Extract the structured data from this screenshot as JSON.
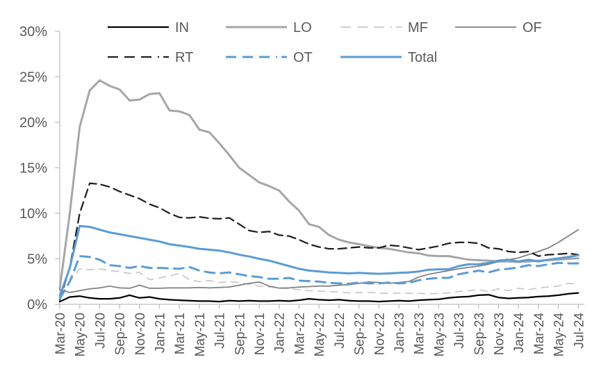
{
  "chart_data": {
    "type": "line",
    "title": "",
    "xlabel": "",
    "ylabel": "",
    "grid": false,
    "legend_position": "top",
    "legend_rows": [
      [
        "IN",
        "LO",
        "MF",
        "OF"
      ],
      [
        "RT",
        "OT",
        "Total"
      ]
    ],
    "ylim": [
      0,
      30
    ],
    "y_tick_labels": [
      "0%",
      "5%",
      "10%",
      "15%",
      "20%",
      "25%",
      "30%"
    ],
    "y_tick_values": [
      0,
      5,
      10,
      15,
      20,
      25,
      30
    ],
    "x_tick_labels": [
      "Mar-20",
      "May-20",
      "Jul-20",
      "Sep-20",
      "Nov-20",
      "Jan-21",
      "Mar-21",
      "May-21",
      "Jul-21",
      "Sep-21",
      "Nov-21",
      "Jan-22",
      "Mar-22",
      "May-22",
      "Jul-22",
      "Sep-22",
      "Nov-22",
      "Jan-23",
      "Mar-23",
      "May-23",
      "Jul-23",
      "Sep-23",
      "Nov-23",
      "Jan-24",
      "Mar-24",
      "May-24",
      "Jul-24"
    ],
    "x": [
      "Mar-20",
      "Apr-20",
      "May-20",
      "Jun-20",
      "Jul-20",
      "Aug-20",
      "Sep-20",
      "Oct-20",
      "Nov-20",
      "Dec-20",
      "Jan-21",
      "Feb-21",
      "Mar-21",
      "Apr-21",
      "May-21",
      "Jun-21",
      "Jul-21",
      "Aug-21",
      "Sep-21",
      "Oct-21",
      "Nov-21",
      "Dec-21",
      "Jan-22",
      "Feb-22",
      "Mar-22",
      "Apr-22",
      "May-22",
      "Jun-22",
      "Jul-22",
      "Aug-22",
      "Sep-22",
      "Oct-22",
      "Nov-22",
      "Dec-22",
      "Jan-23",
      "Feb-23",
      "Mar-23",
      "Apr-23",
      "May-23",
      "Jun-23",
      "Jul-23",
      "Aug-23",
      "Sep-23",
      "Oct-23",
      "Nov-23",
      "Dec-23",
      "Jan-24",
      "Feb-24",
      "Mar-24",
      "Apr-24",
      "May-24",
      "Jun-24",
      "Jul-24"
    ],
    "colors": {
      "black": "#000000",
      "dark_dash": "#1f1f1f",
      "gray_light_thick": "#a6a6a6",
      "gray_lighter_dash": "#c9c9c9",
      "gray_medium": "#7f7f7f",
      "blue": "#5b9bd5",
      "axis": "#bfbfbf",
      "label_text": "#595959"
    },
    "series": [
      {
        "name": "IN",
        "color": "#000000",
        "style": "solid",
        "width": 2.25,
        "values": [
          0.3,
          0.8,
          0.9,
          0.7,
          0.6,
          0.6,
          0.7,
          1.0,
          0.7,
          0.8,
          0.6,
          0.5,
          0.45,
          0.4,
          0.35,
          0.35,
          0.3,
          0.4,
          0.35,
          0.4,
          0.35,
          0.35,
          0.4,
          0.35,
          0.45,
          0.6,
          0.5,
          0.45,
          0.5,
          0.4,
          0.35,
          0.35,
          0.3,
          0.35,
          0.4,
          0.35,
          0.45,
          0.5,
          0.55,
          0.7,
          0.8,
          0.85,
          1.0,
          1.05,
          0.75,
          0.65,
          0.7,
          0.75,
          0.85,
          0.9,
          1.0,
          1.15,
          1.25
        ]
      },
      {
        "name": "LO",
        "color": "#a6a6a6",
        "style": "solid",
        "width": 3,
        "values": [
          1.7,
          10.0,
          19.5,
          23.5,
          24.6,
          24.0,
          23.6,
          22.4,
          22.5,
          23.1,
          23.2,
          21.3,
          21.2,
          20.8,
          19.2,
          18.9,
          17.7,
          16.4,
          15.0,
          14.2,
          13.4,
          13.0,
          12.5,
          11.3,
          10.3,
          8.8,
          8.5,
          7.6,
          7.1,
          6.8,
          6.6,
          6.4,
          6.2,
          6.1,
          5.9,
          5.7,
          5.6,
          5.35,
          5.3,
          5.3,
          5.1,
          4.9,
          4.85,
          4.8,
          4.7,
          4.7,
          4.65,
          4.7,
          4.8,
          4.85,
          4.9,
          5.0,
          5.05
        ]
      },
      {
        "name": "MF",
        "color": "#c9c9c9",
        "style": "dashed",
        "width": 1.75,
        "values": [
          1.4,
          2.5,
          3.9,
          3.8,
          3.9,
          3.7,
          3.6,
          3.4,
          3.5,
          2.7,
          2.9,
          3.1,
          3.4,
          2.7,
          2.5,
          2.6,
          2.4,
          2.5,
          2.4,
          2.2,
          2.0,
          1.9,
          1.8,
          1.7,
          1.6,
          1.5,
          1.45,
          1.4,
          1.35,
          1.25,
          1.3,
          1.3,
          1.25,
          1.2,
          1.25,
          1.2,
          1.2,
          1.15,
          1.2,
          1.25,
          1.4,
          1.5,
          1.6,
          1.4,
          1.7,
          1.5,
          1.76,
          1.6,
          1.8,
          1.9,
          2.0,
          2.3,
          2.2
        ]
      },
      {
        "name": "OF",
        "color": "#7f7f7f",
        "style": "solid",
        "width": 1.75,
        "values": [
          1.6,
          1.3,
          1.5,
          1.7,
          1.8,
          2.0,
          1.8,
          1.76,
          2.1,
          1.76,
          1.76,
          1.8,
          1.8,
          1.8,
          1.85,
          1.8,
          1.85,
          1.9,
          2.1,
          2.3,
          2.45,
          2.0,
          1.78,
          1.8,
          1.9,
          1.95,
          2.0,
          2.0,
          2.1,
          2.15,
          2.3,
          2.45,
          2.4,
          2.3,
          2.4,
          2.5,
          3.0,
          3.3,
          3.5,
          3.7,
          3.9,
          4.05,
          4.2,
          4.4,
          4.7,
          4.9,
          5.1,
          5.45,
          5.8,
          6.2,
          6.8,
          7.5,
          8.2
        ]
      },
      {
        "name": "RT",
        "color": "#1f1f1f",
        "style": "dashed",
        "width": 2.25,
        "values": [
          0.5,
          4.0,
          10.0,
          13.3,
          13.2,
          12.9,
          12.4,
          12.0,
          11.6,
          11.0,
          10.6,
          10.0,
          9.55,
          9.5,
          9.6,
          9.45,
          9.4,
          9.5,
          8.8,
          8.1,
          7.9,
          8.0,
          7.6,
          7.5,
          7.1,
          6.6,
          6.3,
          6.1,
          6.1,
          6.2,
          6.3,
          6.2,
          6.2,
          6.5,
          6.4,
          6.2,
          6.0,
          6.2,
          6.4,
          6.7,
          6.8,
          6.8,
          6.7,
          6.2,
          6.1,
          5.8,
          5.7,
          5.8,
          5.3,
          5.45,
          5.5,
          5.6,
          5.45
        ]
      },
      {
        "name": "OT",
        "color": "#5b9bd5",
        "style": "dashed",
        "width": 3,
        "values": [
          0.6,
          2.5,
          5.3,
          5.2,
          4.9,
          4.3,
          4.2,
          4.0,
          4.2,
          4.0,
          4.0,
          3.95,
          3.9,
          4.1,
          3.7,
          3.5,
          3.4,
          3.5,
          3.3,
          3.1,
          3.0,
          2.8,
          2.8,
          2.9,
          2.6,
          2.55,
          2.5,
          2.35,
          2.3,
          2.25,
          2.4,
          2.3,
          2.3,
          2.4,
          2.3,
          2.35,
          2.65,
          2.8,
          2.9,
          2.9,
          3.3,
          3.5,
          3.7,
          3.5,
          3.8,
          3.9,
          4.05,
          4.3,
          4.2,
          4.4,
          4.55,
          4.5,
          4.5
        ]
      },
      {
        "name": "Total",
        "color": "#5b9bd5",
        "style": "solid",
        "width": 3,
        "values": [
          0.9,
          4.0,
          8.6,
          8.5,
          8.2,
          7.9,
          7.7,
          7.5,
          7.3,
          7.1,
          6.9,
          6.6,
          6.45,
          6.3,
          6.1,
          6.0,
          5.9,
          5.7,
          5.45,
          5.25,
          5.0,
          4.8,
          4.5,
          4.2,
          3.9,
          3.7,
          3.6,
          3.5,
          3.45,
          3.4,
          3.45,
          3.4,
          3.35,
          3.4,
          3.45,
          3.5,
          3.6,
          3.8,
          3.85,
          3.85,
          4.2,
          4.4,
          4.4,
          4.55,
          4.8,
          4.9,
          4.7,
          4.9,
          4.7,
          4.9,
          5.05,
          5.2,
          5.4
        ]
      }
    ]
  }
}
